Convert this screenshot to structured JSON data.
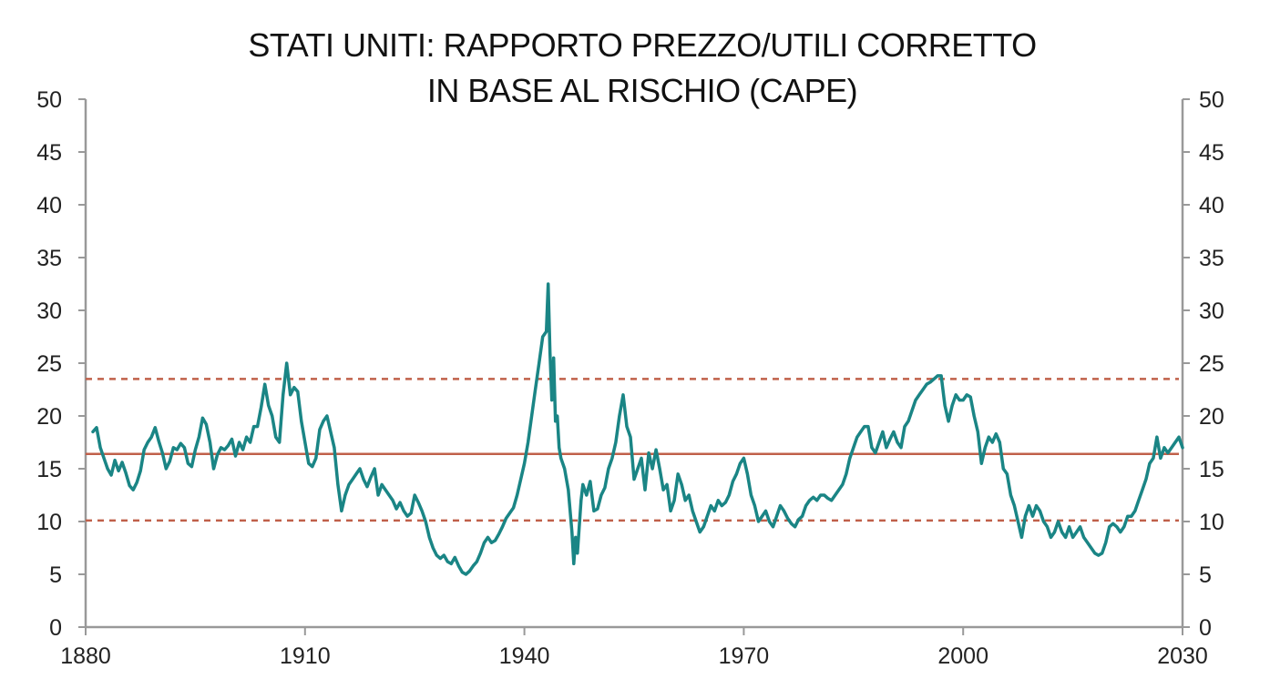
{
  "chart_data": {
    "type": "line",
    "title": "STATI UNITI: RAPPORTO PREZZO/UTILI CORRETTO IN BASE AL RISCHIO (CAPE)",
    "title_lines": [
      "STATI UNITI: RAPPORTO PREZZO/UTILI CORRETTO",
      "IN BASE AL RISCHIO (CAPE)"
    ],
    "xlabel": "",
    "ylabel": "",
    "xlim": [
      1880,
      2030
    ],
    "ylim": [
      0,
      50
    ],
    "x_ticks": [
      1880,
      1910,
      1940,
      1970,
      2000,
      2030
    ],
    "y_ticks": [
      0,
      5,
      10,
      15,
      20,
      25,
      30,
      35,
      40,
      45,
      50
    ],
    "grid": false,
    "dual_y_axis": true,
    "series": [
      {
        "color": "#1a8585",
        "points": [
          [
            1881.0,
            18.5
          ],
          [
            1881.5,
            18.9
          ],
          [
            1882.0,
            17.0
          ],
          [
            1882.5,
            16.0
          ],
          [
            1883.0,
            15.0
          ],
          [
            1883.5,
            14.4
          ],
          [
            1884.0,
            15.8
          ],
          [
            1884.5,
            14.8
          ],
          [
            1885.0,
            15.6
          ],
          [
            1885.5,
            14.6
          ],
          [
            1886.0,
            13.4
          ],
          [
            1886.5,
            13.0
          ],
          [
            1887.0,
            13.7
          ],
          [
            1887.5,
            14.8
          ],
          [
            1888.0,
            16.8
          ],
          [
            1888.5,
            17.5
          ],
          [
            1889.0,
            18.0
          ],
          [
            1889.5,
            18.9
          ],
          [
            1890.0,
            17.6
          ],
          [
            1890.5,
            16.5
          ],
          [
            1891.0,
            15.0
          ],
          [
            1891.5,
            15.7
          ],
          [
            1892.0,
            17.0
          ],
          [
            1892.5,
            16.8
          ],
          [
            1893.0,
            17.4
          ],
          [
            1893.5,
            17.0
          ],
          [
            1894.0,
            15.5
          ],
          [
            1894.5,
            15.2
          ],
          [
            1895.0,
            16.8
          ],
          [
            1895.5,
            18.0
          ],
          [
            1896.0,
            19.8
          ],
          [
            1896.5,
            19.2
          ],
          [
            1897.0,
            17.5
          ],
          [
            1897.5,
            15.0
          ],
          [
            1898.0,
            16.3
          ],
          [
            1898.5,
            17.0
          ],
          [
            1899.0,
            16.8
          ],
          [
            1899.5,
            17.2
          ],
          [
            1900.0,
            17.8
          ],
          [
            1900.5,
            16.2
          ],
          [
            1901.0,
            17.5
          ],
          [
            1901.5,
            16.8
          ],
          [
            1902.0,
            18.0
          ],
          [
            1902.5,
            17.5
          ],
          [
            1903.0,
            19.0
          ],
          [
            1903.5,
            19.0
          ],
          [
            1904.0,
            20.8
          ],
          [
            1904.5,
            23.0
          ],
          [
            1905.0,
            21.0
          ],
          [
            1905.5,
            20.0
          ],
          [
            1906.0,
            18.0
          ],
          [
            1906.5,
            17.5
          ],
          [
            1907.0,
            22.0
          ],
          [
            1907.5,
            25.0
          ],
          [
            1908.0,
            22.0
          ],
          [
            1908.5,
            22.7
          ],
          [
            1909.0,
            22.3
          ],
          [
            1909.5,
            19.5
          ],
          [
            1910.0,
            17.5
          ],
          [
            1910.5,
            15.5
          ],
          [
            1911.0,
            15.2
          ],
          [
            1911.5,
            16.0
          ],
          [
            1912.0,
            18.7
          ],
          [
            1912.5,
            19.5
          ],
          [
            1913.0,
            20.0
          ],
          [
            1913.5,
            18.5
          ],
          [
            1914.0,
            17.0
          ],
          [
            1914.5,
            13.5
          ],
          [
            1915.0,
            11.0
          ],
          [
            1915.5,
            12.5
          ],
          [
            1916.0,
            13.5
          ],
          [
            1916.5,
            14.0
          ],
          [
            1917.0,
            14.5
          ],
          [
            1917.5,
            15.0
          ],
          [
            1918.0,
            14.0
          ],
          [
            1918.5,
            13.3
          ],
          [
            1919.0,
            14.2
          ],
          [
            1919.5,
            15.0
          ],
          [
            1920.0,
            12.5
          ],
          [
            1920.5,
            13.5
          ],
          [
            1921.0,
            13.0
          ],
          [
            1921.5,
            12.5
          ],
          [
            1922.0,
            12.0
          ],
          [
            1922.5,
            11.2
          ],
          [
            1923.0,
            11.8
          ],
          [
            1923.5,
            11.0
          ],
          [
            1924.0,
            10.5
          ],
          [
            1924.5,
            10.8
          ],
          [
            1925.0,
            12.5
          ],
          [
            1925.5,
            11.8
          ],
          [
            1926.0,
            11.0
          ],
          [
            1926.5,
            10.0
          ],
          [
            1927.0,
            8.5
          ],
          [
            1927.5,
            7.5
          ],
          [
            1928.0,
            6.8
          ],
          [
            1928.5,
            6.5
          ],
          [
            1929.0,
            6.8
          ],
          [
            1929.5,
            6.2
          ],
          [
            1930.0,
            6.0
          ],
          [
            1930.5,
            6.6
          ],
          [
            1931.0,
            5.8
          ],
          [
            1931.5,
            5.2
          ],
          [
            1932.0,
            5.0
          ],
          [
            1932.5,
            5.3
          ],
          [
            1933.0,
            5.8
          ],
          [
            1933.5,
            6.2
          ],
          [
            1934.0,
            7.0
          ],
          [
            1934.5,
            8.0
          ],
          [
            1935.0,
            8.5
          ],
          [
            1935.5,
            8.0
          ],
          [
            1936.0,
            8.2
          ],
          [
            1936.5,
            8.8
          ],
          [
            1937.0,
            9.5
          ],
          [
            1937.5,
            10.3
          ],
          [
            1938.0,
            10.8
          ],
          [
            1938.5,
            11.3
          ],
          [
            1939.0,
            12.5
          ],
          [
            1939.5,
            14.0
          ],
          [
            1940.0,
            15.5
          ],
          [
            1940.5,
            17.5
          ],
          [
            1941.0,
            20.0
          ],
          [
            1941.5,
            22.5
          ],
          [
            1942.0,
            25.0
          ],
          [
            1942.5,
            27.5
          ],
          [
            1943.0,
            28.0
          ],
          [
            1943.25,
            32.5
          ],
          [
            1943.5,
            26.0
          ],
          [
            1943.75,
            21.5
          ],
          [
            1944.0,
            25.5
          ],
          [
            1944.25,
            19.5
          ],
          [
            1944.5,
            20.0
          ],
          [
            1944.75,
            17.0
          ],
          [
            1945.0,
            16.0
          ],
          [
            1945.5,
            15.0
          ],
          [
            1946.0,
            13.0
          ],
          [
            1946.5,
            9.0
          ],
          [
            1946.75,
            6.0
          ],
          [
            1947.0,
            8.5
          ],
          [
            1947.25,
            7.0
          ],
          [
            1947.5,
            9.5
          ],
          [
            1947.75,
            12.0
          ],
          [
            1948.0,
            13.5
          ],
          [
            1948.5,
            12.5
          ],
          [
            1949.0,
            13.8
          ],
          [
            1949.5,
            11.0
          ],
          [
            1950.0,
            11.2
          ],
          [
            1950.5,
            12.5
          ],
          [
            1951.0,
            13.2
          ],
          [
            1951.5,
            15.0
          ],
          [
            1952.0,
            16.0
          ],
          [
            1952.5,
            17.5
          ],
          [
            1953.0,
            20.0
          ],
          [
            1953.5,
            22.0
          ],
          [
            1954.0,
            19.0
          ],
          [
            1954.5,
            18.0
          ],
          [
            1955.0,
            14.0
          ],
          [
            1955.5,
            15.0
          ],
          [
            1956.0,
            16.0
          ],
          [
            1956.5,
            13.0
          ],
          [
            1957.0,
            16.5
          ],
          [
            1957.5,
            15.0
          ],
          [
            1958.0,
            16.8
          ],
          [
            1958.5,
            15.0
          ],
          [
            1959.0,
            13.0
          ],
          [
            1959.5,
            13.5
          ],
          [
            1960.0,
            11.0
          ],
          [
            1960.5,
            12.0
          ],
          [
            1961.0,
            14.5
          ],
          [
            1961.5,
            13.5
          ],
          [
            1962.0,
            12.0
          ],
          [
            1962.5,
            12.5
          ],
          [
            1963.0,
            11.0
          ],
          [
            1963.5,
            10.0
          ],
          [
            1964.0,
            9.0
          ],
          [
            1964.5,
            9.5
          ],
          [
            1965.0,
            10.5
          ],
          [
            1965.5,
            11.5
          ],
          [
            1966.0,
            11.0
          ],
          [
            1966.5,
            12.0
          ],
          [
            1967.0,
            11.5
          ],
          [
            1967.5,
            11.8
          ],
          [
            1968.0,
            12.5
          ],
          [
            1968.5,
            13.8
          ],
          [
            1969.0,
            14.5
          ],
          [
            1969.5,
            15.5
          ],
          [
            1970.0,
            16.0
          ],
          [
            1970.5,
            14.5
          ],
          [
            1971.0,
            12.5
          ],
          [
            1971.5,
            11.5
          ],
          [
            1972.0,
            10.0
          ],
          [
            1972.5,
            10.5
          ],
          [
            1973.0,
            11.0
          ],
          [
            1973.5,
            10.0
          ],
          [
            1974.0,
            9.5
          ],
          [
            1974.5,
            10.5
          ],
          [
            1975.0,
            11.5
          ],
          [
            1975.5,
            11.0
          ],
          [
            1976.0,
            10.3
          ],
          [
            1976.5,
            9.8
          ],
          [
            1977.0,
            9.5
          ],
          [
            1977.5,
            10.2
          ],
          [
            1978.0,
            10.5
          ],
          [
            1978.5,
            11.5
          ],
          [
            1979.0,
            12.0
          ],
          [
            1979.5,
            12.3
          ],
          [
            1980.0,
            12.0
          ],
          [
            1980.5,
            12.5
          ],
          [
            1981.0,
            12.5
          ],
          [
            1981.5,
            12.2
          ],
          [
            1982.0,
            12.0
          ],
          [
            1982.5,
            12.5
          ],
          [
            1983.0,
            13.0
          ],
          [
            1983.5,
            13.5
          ],
          [
            1984.0,
            14.5
          ],
          [
            1984.5,
            16.0
          ],
          [
            1985.0,
            17.0
          ],
          [
            1985.5,
            18.0
          ],
          [
            1986.0,
            18.5
          ],
          [
            1986.5,
            19.0
          ],
          [
            1987.0,
            19.0
          ],
          [
            1987.5,
            17.0
          ],
          [
            1988.0,
            16.5
          ],
          [
            1988.5,
            17.5
          ],
          [
            1989.0,
            18.5
          ],
          [
            1989.5,
            17.0
          ],
          [
            1990.0,
            17.8
          ],
          [
            1990.5,
            18.5
          ],
          [
            1991.0,
            17.5
          ],
          [
            1991.5,
            17.0
          ],
          [
            1992.0,
            19.0
          ],
          [
            1992.5,
            19.5
          ],
          [
            1993.0,
            20.5
          ],
          [
            1993.5,
            21.5
          ],
          [
            1994.0,
            22.0
          ],
          [
            1994.5,
            22.5
          ],
          [
            1995.0,
            23.0
          ],
          [
            1995.5,
            23.2
          ],
          [
            1996.0,
            23.5
          ],
          [
            1996.5,
            23.8
          ],
          [
            1997.0,
            23.8
          ],
          [
            1997.5,
            21.0
          ],
          [
            1998.0,
            19.5
          ],
          [
            1998.5,
            21.0
          ],
          [
            1999.0,
            22.0
          ],
          [
            1999.5,
            21.5
          ],
          [
            2000.0,
            21.5
          ],
          [
            2000.5,
            22.0
          ],
          [
            2001.0,
            21.8
          ],
          [
            2001.5,
            20.0
          ],
          [
            2002.0,
            18.5
          ],
          [
            2002.5,
            15.5
          ],
          [
            2003.0,
            17.0
          ],
          [
            2003.5,
            18.0
          ],
          [
            2004.0,
            17.5
          ],
          [
            2004.5,
            18.3
          ],
          [
            2005.0,
            17.5
          ],
          [
            2005.5,
            15.0
          ],
          [
            2006.0,
            14.5
          ],
          [
            2006.5,
            12.5
          ],
          [
            2007.0,
            11.5
          ],
          [
            2007.5,
            10.0
          ],
          [
            2008.0,
            8.5
          ],
          [
            2008.5,
            10.5
          ],
          [
            2009.0,
            11.5
          ],
          [
            2009.5,
            10.5
          ],
          [
            2010.0,
            11.5
          ],
          [
            2010.5,
            11.0
          ],
          [
            2011.0,
            10.0
          ],
          [
            2011.5,
            9.5
          ],
          [
            2012.0,
            8.5
          ],
          [
            2012.5,
            9.0
          ],
          [
            2013.0,
            10.0
          ],
          [
            2013.5,
            9.0
          ],
          [
            2014.0,
            8.5
          ],
          [
            2014.5,
            9.5
          ],
          [
            2015.0,
            8.5
          ],
          [
            2015.5,
            9.0
          ],
          [
            2016.0,
            9.5
          ],
          [
            2016.5,
            8.5
          ],
          [
            2017.0,
            8.0
          ],
          [
            2017.5,
            7.5
          ],
          [
            2018.0,
            7.0
          ],
          [
            2018.5,
            6.8
          ],
          [
            2019.0,
            7.0
          ],
          [
            2019.5,
            8.0
          ],
          [
            2020.0,
            9.5
          ],
          [
            2020.5,
            9.8
          ],
          [
            2021.0,
            9.5
          ],
          [
            2021.5,
            9.0
          ],
          [
            2022.0,
            9.5
          ],
          [
            2022.5,
            10.5
          ],
          [
            2023.0,
            10.5
          ],
          [
            2023.5,
            11.0
          ],
          [
            2024.0,
            12.0
          ],
          [
            2024.5,
            13.0
          ],
          [
            2025.0,
            14.0
          ],
          [
            2025.5,
            15.5
          ],
          [
            2026.0,
            16.0
          ],
          [
            2026.5,
            18.0
          ],
          [
            2027.0,
            16.0
          ],
          [
            2027.5,
            17.0
          ],
          [
            2028.0,
            16.5
          ],
          [
            2028.5,
            17.0
          ],
          [
            2029.0,
            17.5
          ],
          [
            2029.5,
            18.0
          ],
          [
            2030.0,
            17.0
          ]
        ]
      }
    ],
    "reference_lines": [
      {
        "value": 16.4,
        "style": "solid",
        "color": "#c0604a"
      },
      {
        "value": 23.5,
        "style": "dashed",
        "color": "#c0604a"
      },
      {
        "value": 10.1,
        "style": "dashed",
        "color": "#c0604a"
      }
    ],
    "axis_color": "#999999"
  }
}
